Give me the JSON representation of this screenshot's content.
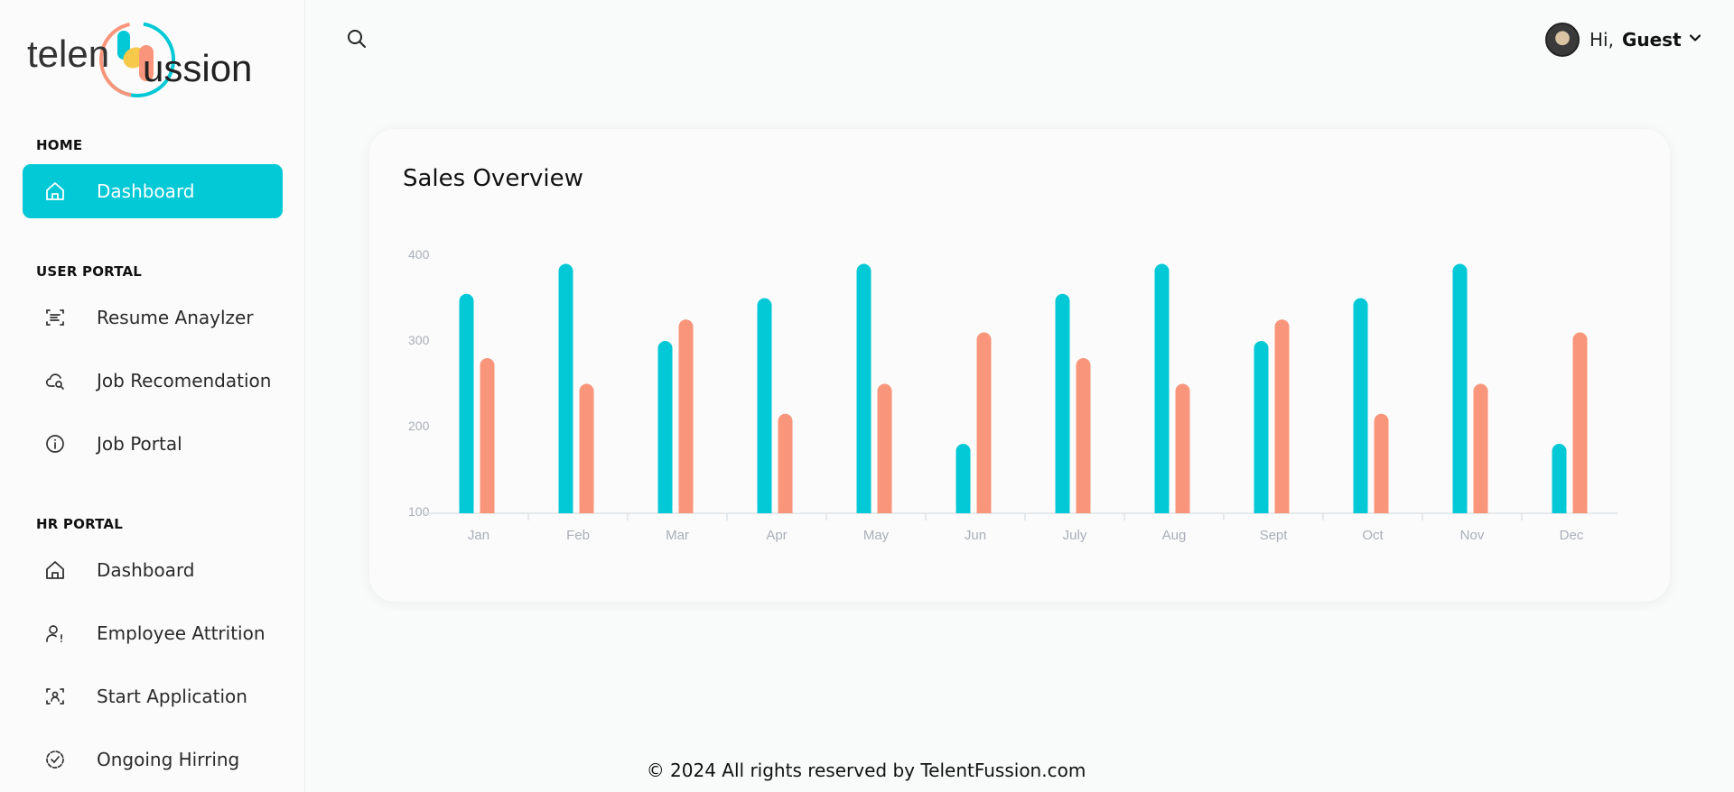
{
  "brand": {
    "name_left": "telen",
    "name_right": "ussion",
    "colors": {
      "teal": "#03c8d6",
      "coral": "#f9957a",
      "yellow": "#f6c94a"
    }
  },
  "sidebar": {
    "sections": [
      {
        "title": "HOME"
      },
      {
        "title": "USER PORTAL"
      },
      {
        "title": "HR PORTAL"
      }
    ],
    "items": [
      {
        "label": "Dashboard",
        "icon": "home-icon",
        "active": true
      },
      {
        "label": "Resume Anaylzer",
        "icon": "scan-text-icon"
      },
      {
        "label": "Job Recomendation",
        "icon": "cloud-search-icon"
      },
      {
        "label": "Job Portal",
        "icon": "info-icon"
      },
      {
        "label": "Dashboard",
        "icon": "home-icon"
      },
      {
        "label": "Employee Attrition",
        "icon": "user-alert-icon"
      },
      {
        "label": "Start Application",
        "icon": "scan-user-icon"
      },
      {
        "label": "Ongoing Hirring",
        "icon": "check-circle-dashed-icon"
      }
    ]
  },
  "header": {
    "search_icon": "search-icon",
    "greeting": "Hi,",
    "username": "Guest"
  },
  "card": {
    "title": "Sales Overview"
  },
  "chart_data": {
    "type": "bar",
    "title": "Sales Overview",
    "categories": [
      "Jan",
      "Feb",
      "Mar",
      "Apr",
      "May",
      "Jun",
      "July",
      "Aug",
      "Sept",
      "Oct",
      "Nov",
      "Dec"
    ],
    "series": [
      {
        "color": "#03c8d6",
        "values": [
          355,
          390,
          300,
          350,
          390,
          180,
          355,
          390,
          300,
          350,
          390,
          180
        ]
      },
      {
        "color": "#f9957a",
        "values": [
          280,
          250,
          325,
          215,
          250,
          310,
          280,
          250,
          325,
          215,
          250,
          310
        ]
      }
    ],
    "yticks": [
      "400",
      "300",
      "200",
      "100"
    ],
    "ylim": [
      100,
      400
    ],
    "grid": false
  },
  "footer": {
    "text": "© 2024 All rights reserved by TelentFussion.com"
  }
}
